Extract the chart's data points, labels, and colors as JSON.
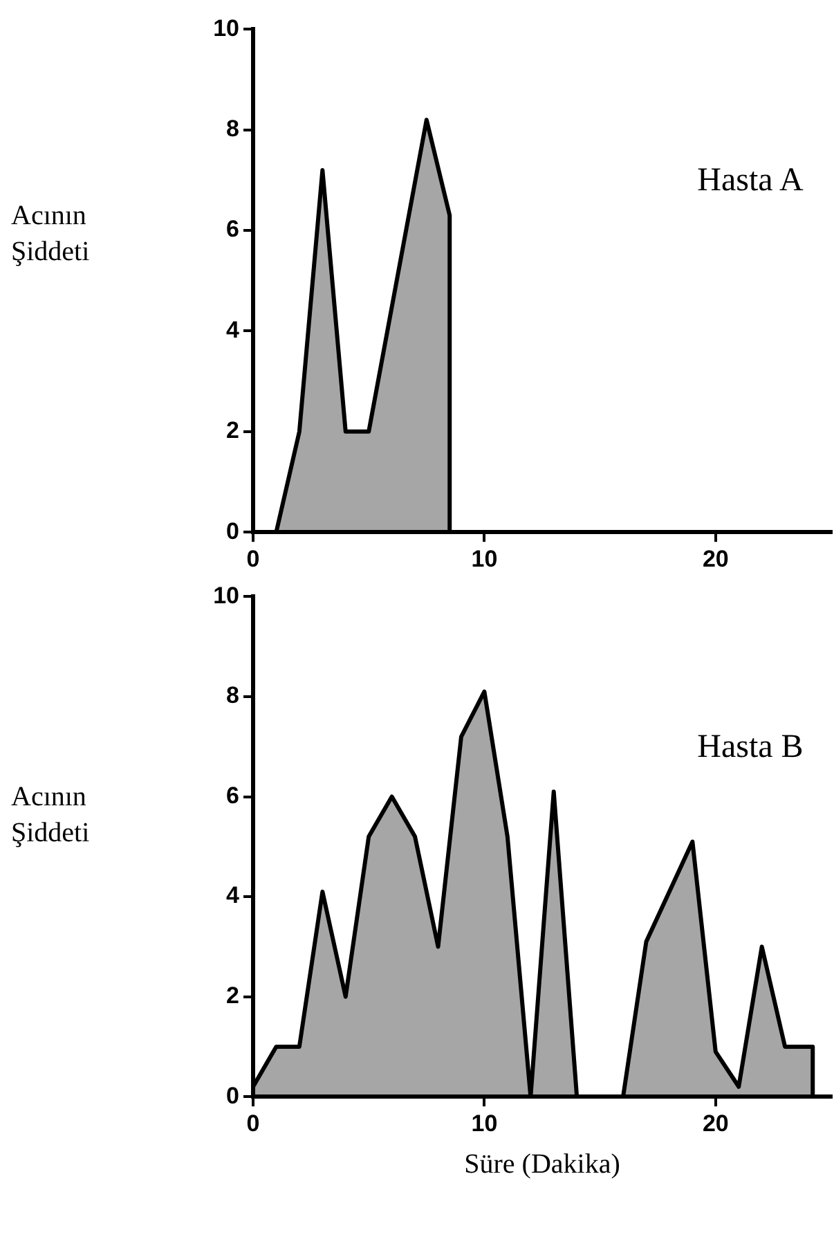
{
  "chart_data": [
    {
      "type": "area",
      "title": "Hasta A",
      "ylabel": "Acının Şiddeti",
      "xlim": [
        0,
        25
      ],
      "xticks": [
        0,
        10,
        20
      ],
      "ylim": [
        0,
        10
      ],
      "yticks": [
        0,
        2,
        4,
        6,
        8,
        10
      ],
      "series": [
        {
          "color": "#000000",
          "x": [
            0,
            1,
            2,
            3,
            4,
            5,
            7.5,
            8.5,
            8.5,
            25
          ],
          "values": [
            0,
            0,
            2,
            7.2,
            2,
            2,
            8.2,
            6.3,
            0,
            0
          ]
        }
      ]
    },
    {
      "type": "area",
      "title": "Hasta B",
      "ylabel": "Acının Şiddeti",
      "xlabel": "Süre (Dakika)",
      "xlim": [
        0,
        25
      ],
      "xticks": [
        0,
        10,
        20
      ],
      "ylim": [
        0,
        10
      ],
      "yticks": [
        0,
        2,
        4,
        6,
        8,
        10
      ],
      "series": [
        {
          "color": "#000000",
          "x": [
            0,
            1,
            2,
            3,
            4,
            5,
            6,
            7,
            8,
            9,
            10,
            11,
            12,
            13,
            14,
            16,
            17,
            19,
            20,
            21,
            22,
            23,
            24.2,
            24.2
          ],
          "values": [
            0.2,
            1,
            1,
            4.1,
            2,
            5.2,
            6,
            5.2,
            3,
            7.2,
            8.1,
            5.2,
            0,
            6.1,
            0,
            0,
            3.1,
            5.1,
            0.9,
            0.2,
            3,
            1,
            1,
            0
          ]
        }
      ]
    }
  ]
}
